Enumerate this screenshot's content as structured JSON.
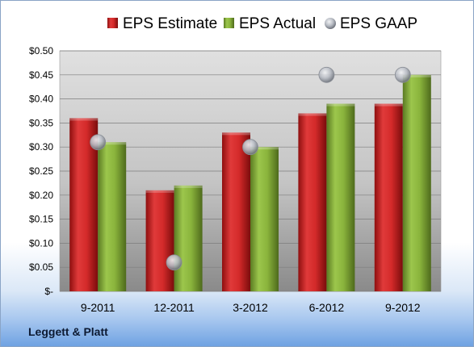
{
  "company": "Leggett & Platt",
  "colors": {
    "estimate": "#d42a2a",
    "actual": "#8ab43c",
    "gaap": "#b8bcc4"
  },
  "chart_data": {
    "type": "bar",
    "categories": [
      "9-2011",
      "12-2011",
      "3-2012",
      "6-2012",
      "9-2012"
    ],
    "series": [
      {
        "name": "EPS Estimate",
        "kind": "bar",
        "values": [
          0.36,
          0.21,
          0.33,
          0.37,
          0.39
        ]
      },
      {
        "name": "EPS Actual",
        "kind": "bar",
        "values": [
          0.31,
          0.22,
          0.3,
          0.39,
          0.45
        ]
      },
      {
        "name": "EPS GAAP",
        "kind": "scatter",
        "values": [
          0.31,
          0.06,
          0.3,
          0.45,
          0.45
        ]
      }
    ],
    "y_tick_labels": [
      "$-",
      "$0.05",
      "$0.10",
      "$0.15",
      "$0.20",
      "$0.25",
      "$0.30",
      "$0.35",
      "$0.40",
      "$0.45",
      "$0.50"
    ],
    "ylim": [
      0,
      0.5
    ],
    "grid": true,
    "legend_position": "top"
  }
}
